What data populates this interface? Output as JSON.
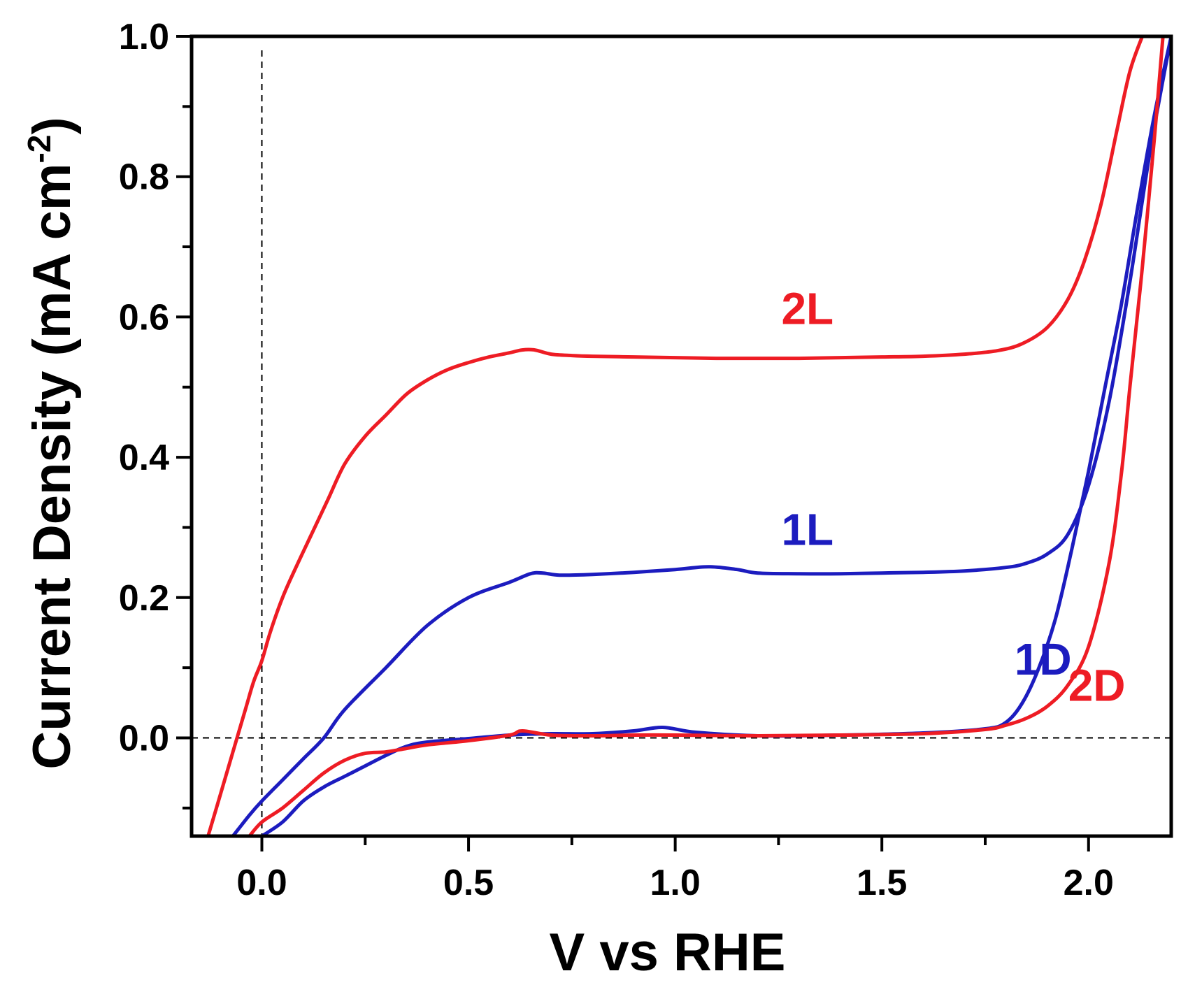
{
  "chart_data": {
    "type": "line",
    "title": "",
    "xlabel": "V  vs RHE",
    "ylabel": "Current Density (mA cm",
    "ylabel_superscript": "-2",
    "ylabel_suffix": ")",
    "xlim": [
      -0.17,
      2.2
    ],
    "ylim": [
      -0.14,
      1.0
    ],
    "x_ticks": [
      0.0,
      0.5,
      1.0,
      1.5,
      2.0
    ],
    "x_tick_labels": [
      "0.0",
      "0.5",
      "1.0",
      "1.5",
      "2.0"
    ],
    "y_ticks": [
      0.0,
      0.2,
      0.4,
      0.6,
      0.8,
      1.0
    ],
    "y_tick_labels": [
      "0.0",
      "0.2",
      "0.4",
      "0.6",
      "0.8",
      "1.0"
    ],
    "reference_lines": {
      "x": 0.0,
      "y": 0.0
    },
    "grid": false,
    "colors": {
      "red": "#ee1c24",
      "blue": "#1c1cbf",
      "axis": "#000000"
    },
    "series": [
      {
        "name": "2L",
        "color": "#ee1c24",
        "label_at": [
          1.32,
          0.59
        ],
        "x": [
          -0.13,
          -0.1,
          -0.07,
          -0.04,
          -0.02,
          0.0,
          0.02,
          0.05,
          0.08,
          0.12,
          0.16,
          0.2,
          0.25,
          0.3,
          0.35,
          0.4,
          0.45,
          0.5,
          0.55,
          0.6,
          0.63,
          0.66,
          0.7,
          0.75,
          0.8,
          0.9,
          1.0,
          1.1,
          1.2,
          1.3,
          1.4,
          1.5,
          1.6,
          1.7,
          1.78,
          1.84,
          1.9,
          1.95,
          1.99,
          2.03,
          2.07,
          2.1,
          2.13
        ],
        "values": [
          -0.14,
          -0.08,
          -0.02,
          0.04,
          0.08,
          0.11,
          0.15,
          0.2,
          0.24,
          0.29,
          0.34,
          0.39,
          0.43,
          0.46,
          0.49,
          0.51,
          0.525,
          0.535,
          0.543,
          0.549,
          0.553,
          0.553,
          0.547,
          0.545,
          0.544,
          0.543,
          0.542,
          0.541,
          0.541,
          0.541,
          0.542,
          0.543,
          0.544,
          0.547,
          0.552,
          0.562,
          0.585,
          0.625,
          0.68,
          0.76,
          0.87,
          0.95,
          1.0
        ]
      },
      {
        "name": "1L",
        "color": "#1c1cbf",
        "label_at": [
          1.32,
          0.275
        ],
        "x": [
          -0.07,
          -0.03,
          0.0,
          0.05,
          0.1,
          0.15,
          0.2,
          0.3,
          0.4,
          0.5,
          0.6,
          0.65,
          0.68,
          0.72,
          0.8,
          0.9,
          1.0,
          1.08,
          1.15,
          1.2,
          1.3,
          1.4,
          1.5,
          1.6,
          1.7,
          1.8,
          1.85,
          1.9,
          1.95,
          2.0,
          2.05,
          2.1,
          2.15,
          2.2
        ],
        "values": [
          -0.14,
          -0.11,
          -0.09,
          -0.06,
          -0.03,
          0.0,
          0.04,
          0.1,
          0.16,
          0.2,
          0.222,
          0.234,
          0.235,
          0.232,
          0.233,
          0.236,
          0.24,
          0.244,
          0.24,
          0.235,
          0.234,
          0.234,
          0.235,
          0.236,
          0.238,
          0.243,
          0.249,
          0.262,
          0.29,
          0.36,
          0.48,
          0.65,
          0.84,
          1.0
        ]
      },
      {
        "name": "1D",
        "color": "#1c1cbf",
        "label_at": [
          1.89,
          0.09
        ],
        "x": [
          0.0,
          0.05,
          0.1,
          0.15,
          0.2,
          0.25,
          0.3,
          0.35,
          0.4,
          0.5,
          0.6,
          0.7,
          0.8,
          0.9,
          0.97,
          1.05,
          1.2,
          1.4,
          1.6,
          1.75,
          1.8,
          1.84,
          1.88,
          1.92,
          1.96,
          2.0,
          2.04,
          2.08,
          2.12,
          2.16,
          2.2
        ],
        "values": [
          -0.14,
          -0.12,
          -0.09,
          -0.07,
          -0.055,
          -0.04,
          -0.025,
          -0.012,
          -0.006,
          -0.001,
          0.004,
          0.006,
          0.006,
          0.01,
          0.015,
          0.008,
          0.003,
          0.004,
          0.007,
          0.013,
          0.022,
          0.05,
          0.1,
          0.17,
          0.27,
          0.38,
          0.5,
          0.62,
          0.76,
          0.89,
          1.0
        ]
      },
      {
        "name": "2D",
        "color": "#ee1c24",
        "label_at": [
          2.02,
          0.053
        ],
        "x": [
          -0.03,
          0.0,
          0.05,
          0.1,
          0.15,
          0.2,
          0.25,
          0.3,
          0.35,
          0.4,
          0.5,
          0.6,
          0.63,
          0.7,
          0.8,
          0.9,
          1.0,
          1.2,
          1.4,
          1.6,
          1.75,
          1.8,
          1.85,
          1.9,
          1.95,
          2.0,
          2.05,
          2.08,
          2.1,
          2.13,
          2.16,
          2.18
        ],
        "values": [
          -0.14,
          -0.12,
          -0.1,
          -0.075,
          -0.05,
          -0.032,
          -0.022,
          -0.02,
          -0.015,
          -0.01,
          -0.004,
          0.004,
          0.01,
          0.004,
          0.003,
          0.004,
          0.004,
          0.003,
          0.004,
          0.006,
          0.012,
          0.018,
          0.028,
          0.045,
          0.075,
          0.13,
          0.25,
          0.38,
          0.5,
          0.67,
          0.86,
          1.0
        ]
      }
    ]
  }
}
